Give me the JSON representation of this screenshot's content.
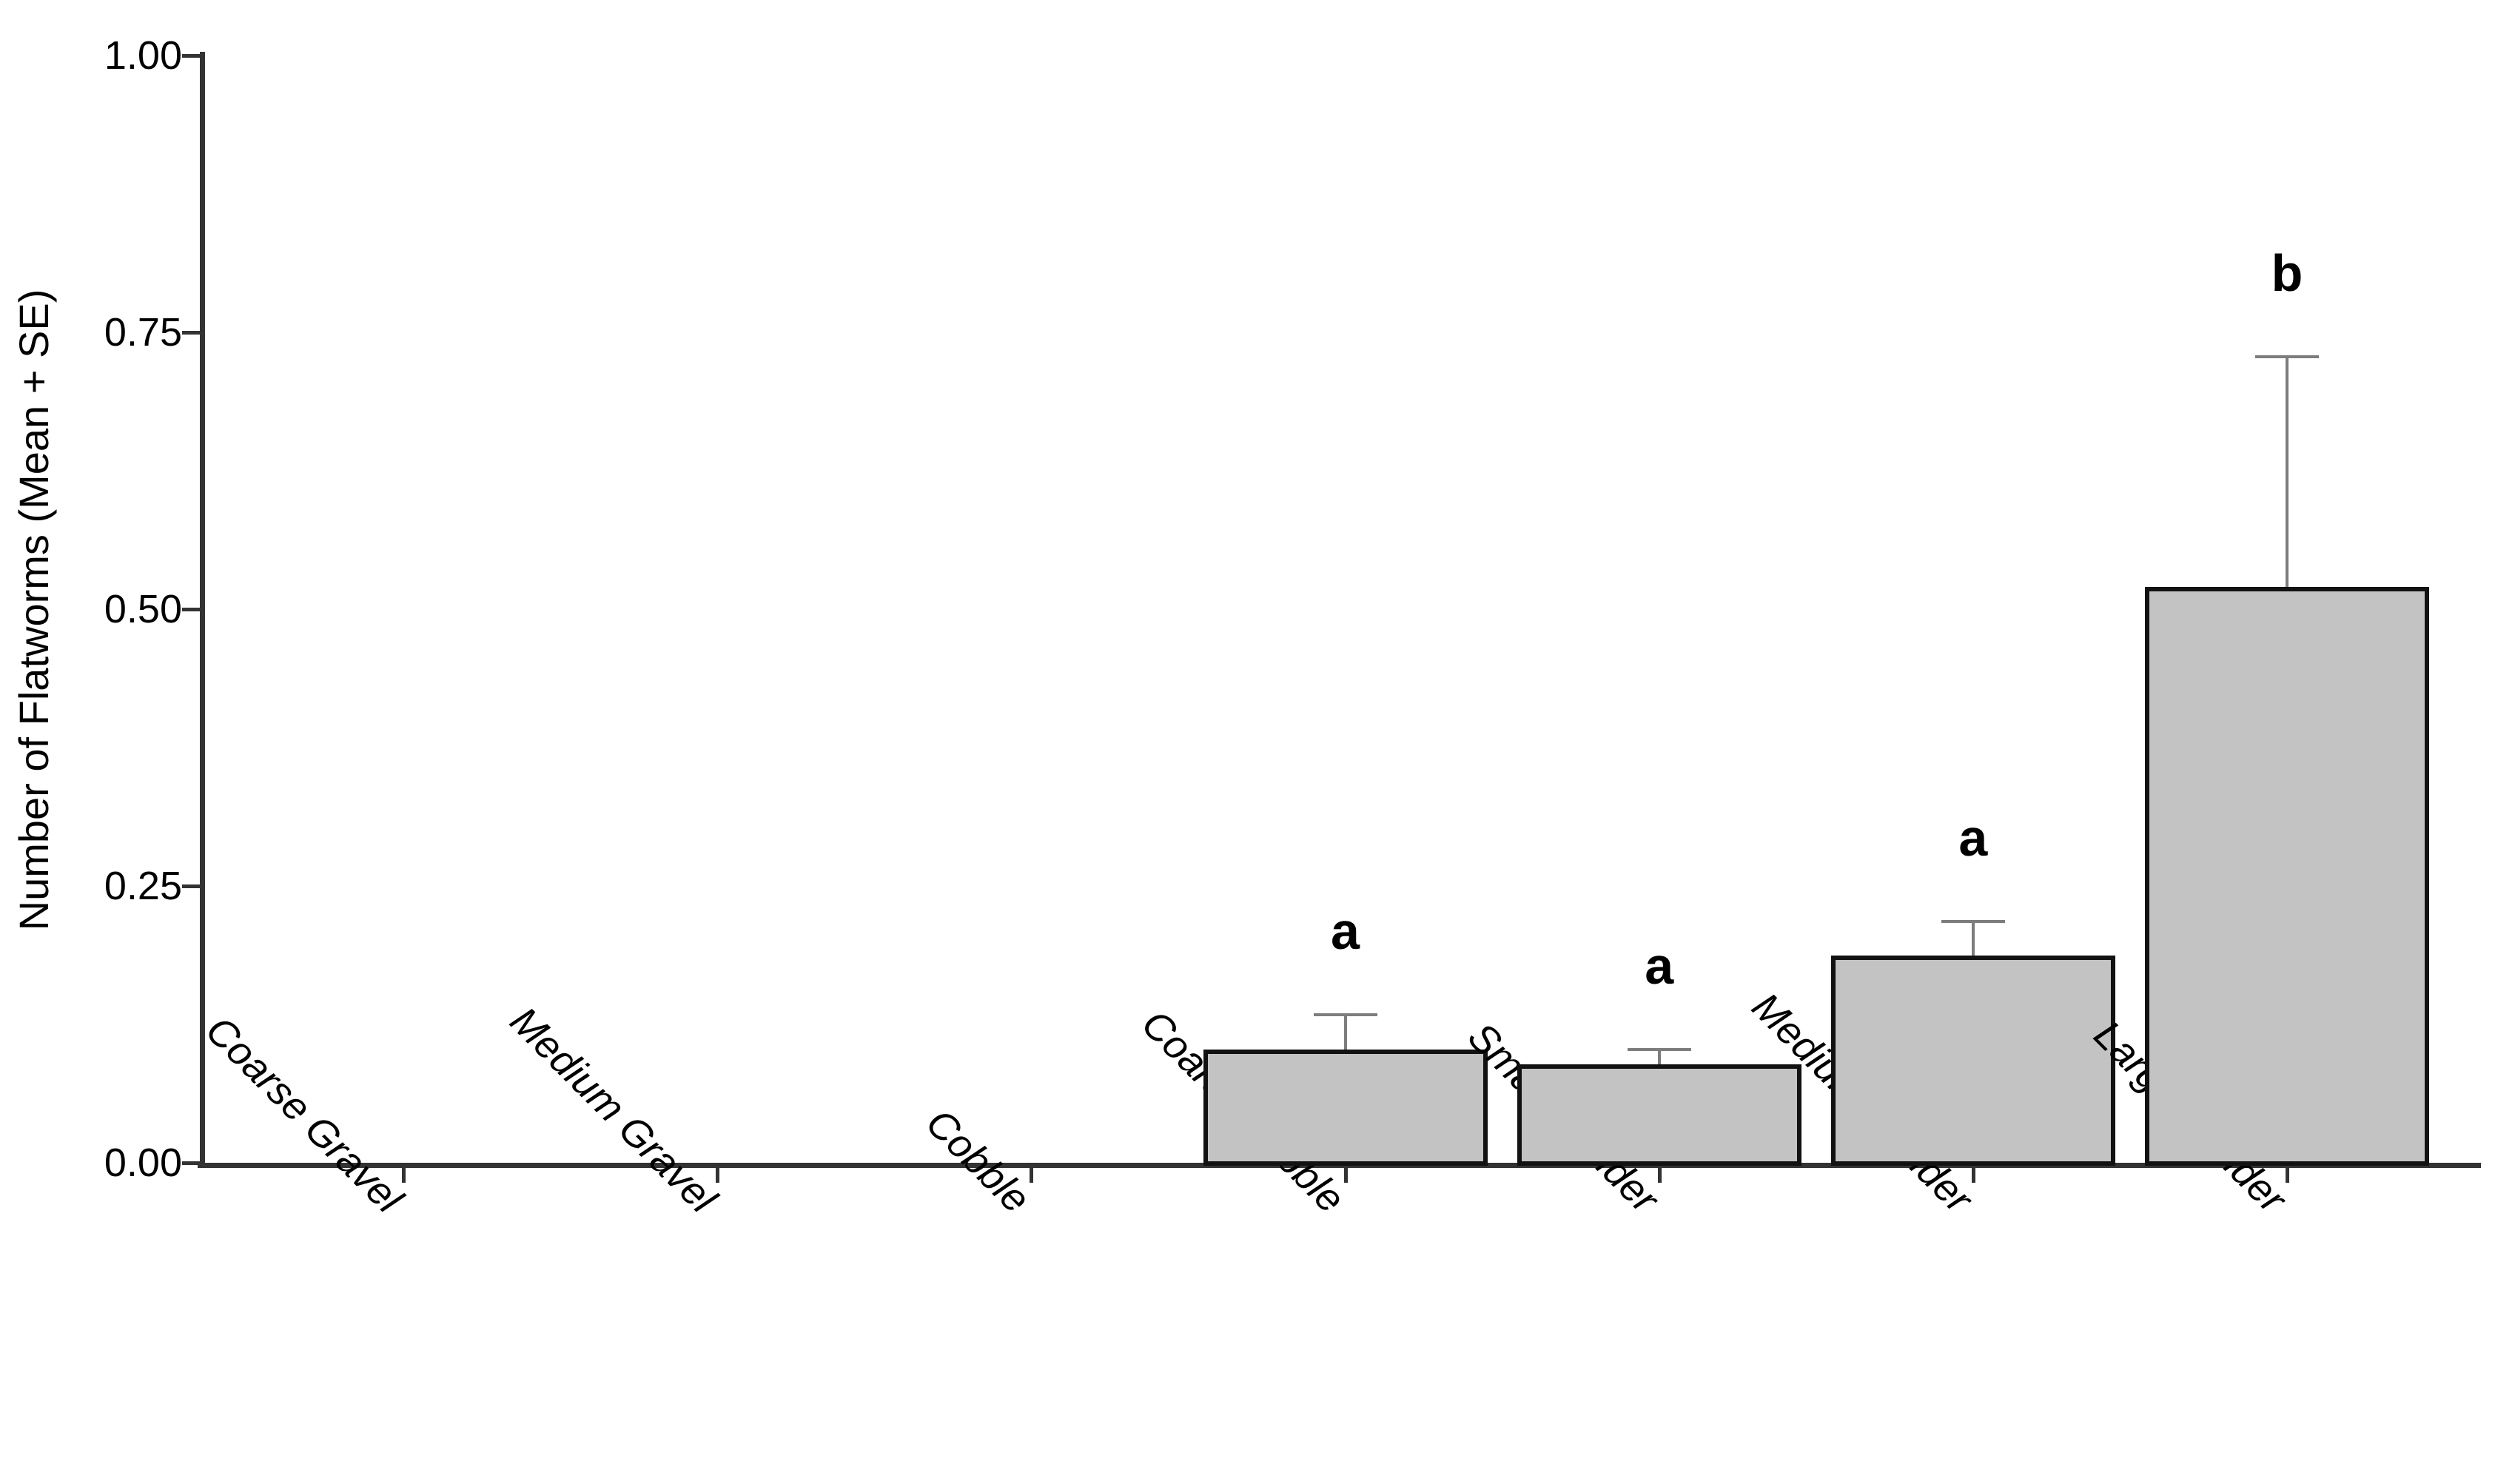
{
  "chart_data": {
    "type": "bar",
    "title": "",
    "xlabel": "",
    "ylabel": "Number of Flatworms (Mean + SE)",
    "categories": [
      "Coarse Gravel",
      "Medium Gravel",
      "Cobble",
      "Coarse Cobble",
      "Small Boulder",
      "Medium Boulder",
      "Large Boulder"
    ],
    "values": [
      0,
      0,
      0,
      0.102,
      0.089,
      0.187,
      0.52
    ],
    "standard_errors": [
      0,
      0,
      0,
      0.032,
      0.013,
      0.031,
      0.208
    ],
    "significance_letters": [
      "",
      "",
      "",
      "a",
      "a",
      "a",
      "b"
    ],
    "ylim": [
      0,
      1
    ],
    "y_ticks": [
      {
        "value": 0.0,
        "label": "0.00"
      },
      {
        "value": 0.25,
        "label": "0.25"
      },
      {
        "value": 0.5,
        "label": "0.50"
      },
      {
        "value": 0.75,
        "label": "0.75"
      },
      {
        "value": 1.0,
        "label": "1.00"
      }
    ],
    "grid": "off",
    "legend": "none",
    "error_bars": "mean_plus_se_upper_only",
    "colors": {
      "bar_fill": "#c3c3c3",
      "bar_border": "#121212",
      "error_bar": "#7d7d7d",
      "axis": "#333333",
      "text": "#000000",
      "background": "#ffffff"
    }
  }
}
